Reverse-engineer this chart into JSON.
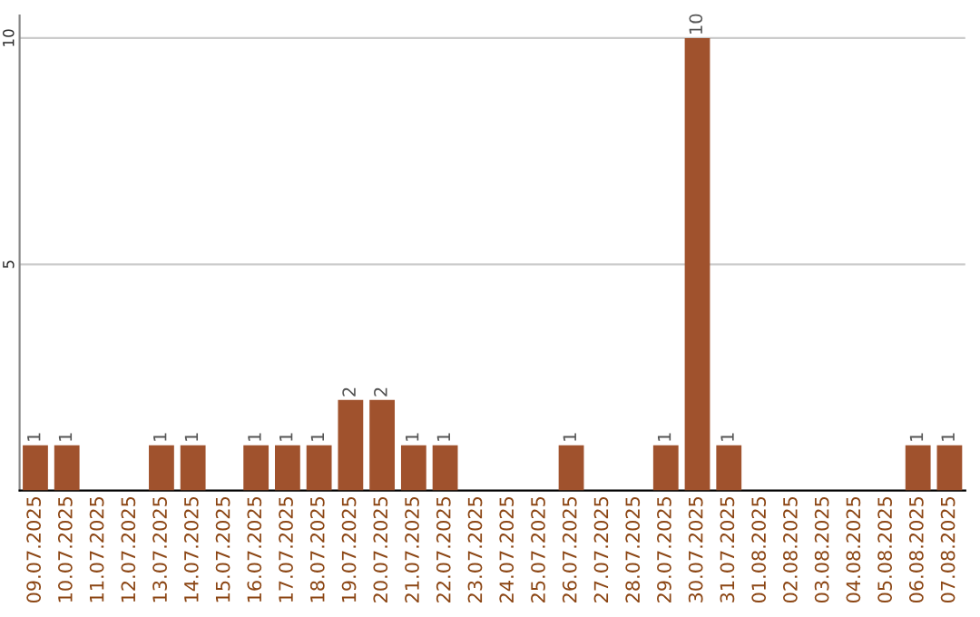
{
  "chart_data": {
    "type": "bar",
    "categories": [
      "09.07.2025",
      "10.07.2025",
      "11.07.2025",
      "12.07.2025",
      "13.07.2025",
      "14.07.2025",
      "15.07.2025",
      "16.07.2025",
      "17.07.2025",
      "18.07.2025",
      "19.07.2025",
      "20.07.2025",
      "21.07.2025",
      "22.07.2025",
      "23.07.2025",
      "24.07.2025",
      "25.07.2025",
      "26.07.2025",
      "27.07.2025",
      "28.07.2025",
      "29.07.2025",
      "30.07.2025",
      "31.07.2025",
      "01.08.2025",
      "02.08.2025",
      "03.08.2025",
      "04.08.2025",
      "05.08.2025",
      "06.08.2025",
      "07.08.2025"
    ],
    "values": [
      1,
      1,
      0,
      0,
      1,
      1,
      0,
      1,
      1,
      1,
      2,
      2,
      1,
      1,
      0,
      0,
      0,
      1,
      0,
      0,
      1,
      10,
      1,
      0,
      0,
      0,
      0,
      0,
      1,
      1
    ],
    "value_labels": [
      "1",
      "1",
      null,
      null,
      "1",
      "1",
      null,
      "1",
      "1",
      "1",
      "2",
      "2",
      "1",
      "1",
      null,
      null,
      null,
      "1",
      null,
      null,
      "1",
      "10",
      "1",
      null,
      null,
      null,
      null,
      null,
      "1",
      "1"
    ],
    "color": "#a0522d",
    "ylim": [
      0,
      10.5
    ],
    "yticks": [
      5,
      10
    ],
    "grid": "y"
  }
}
